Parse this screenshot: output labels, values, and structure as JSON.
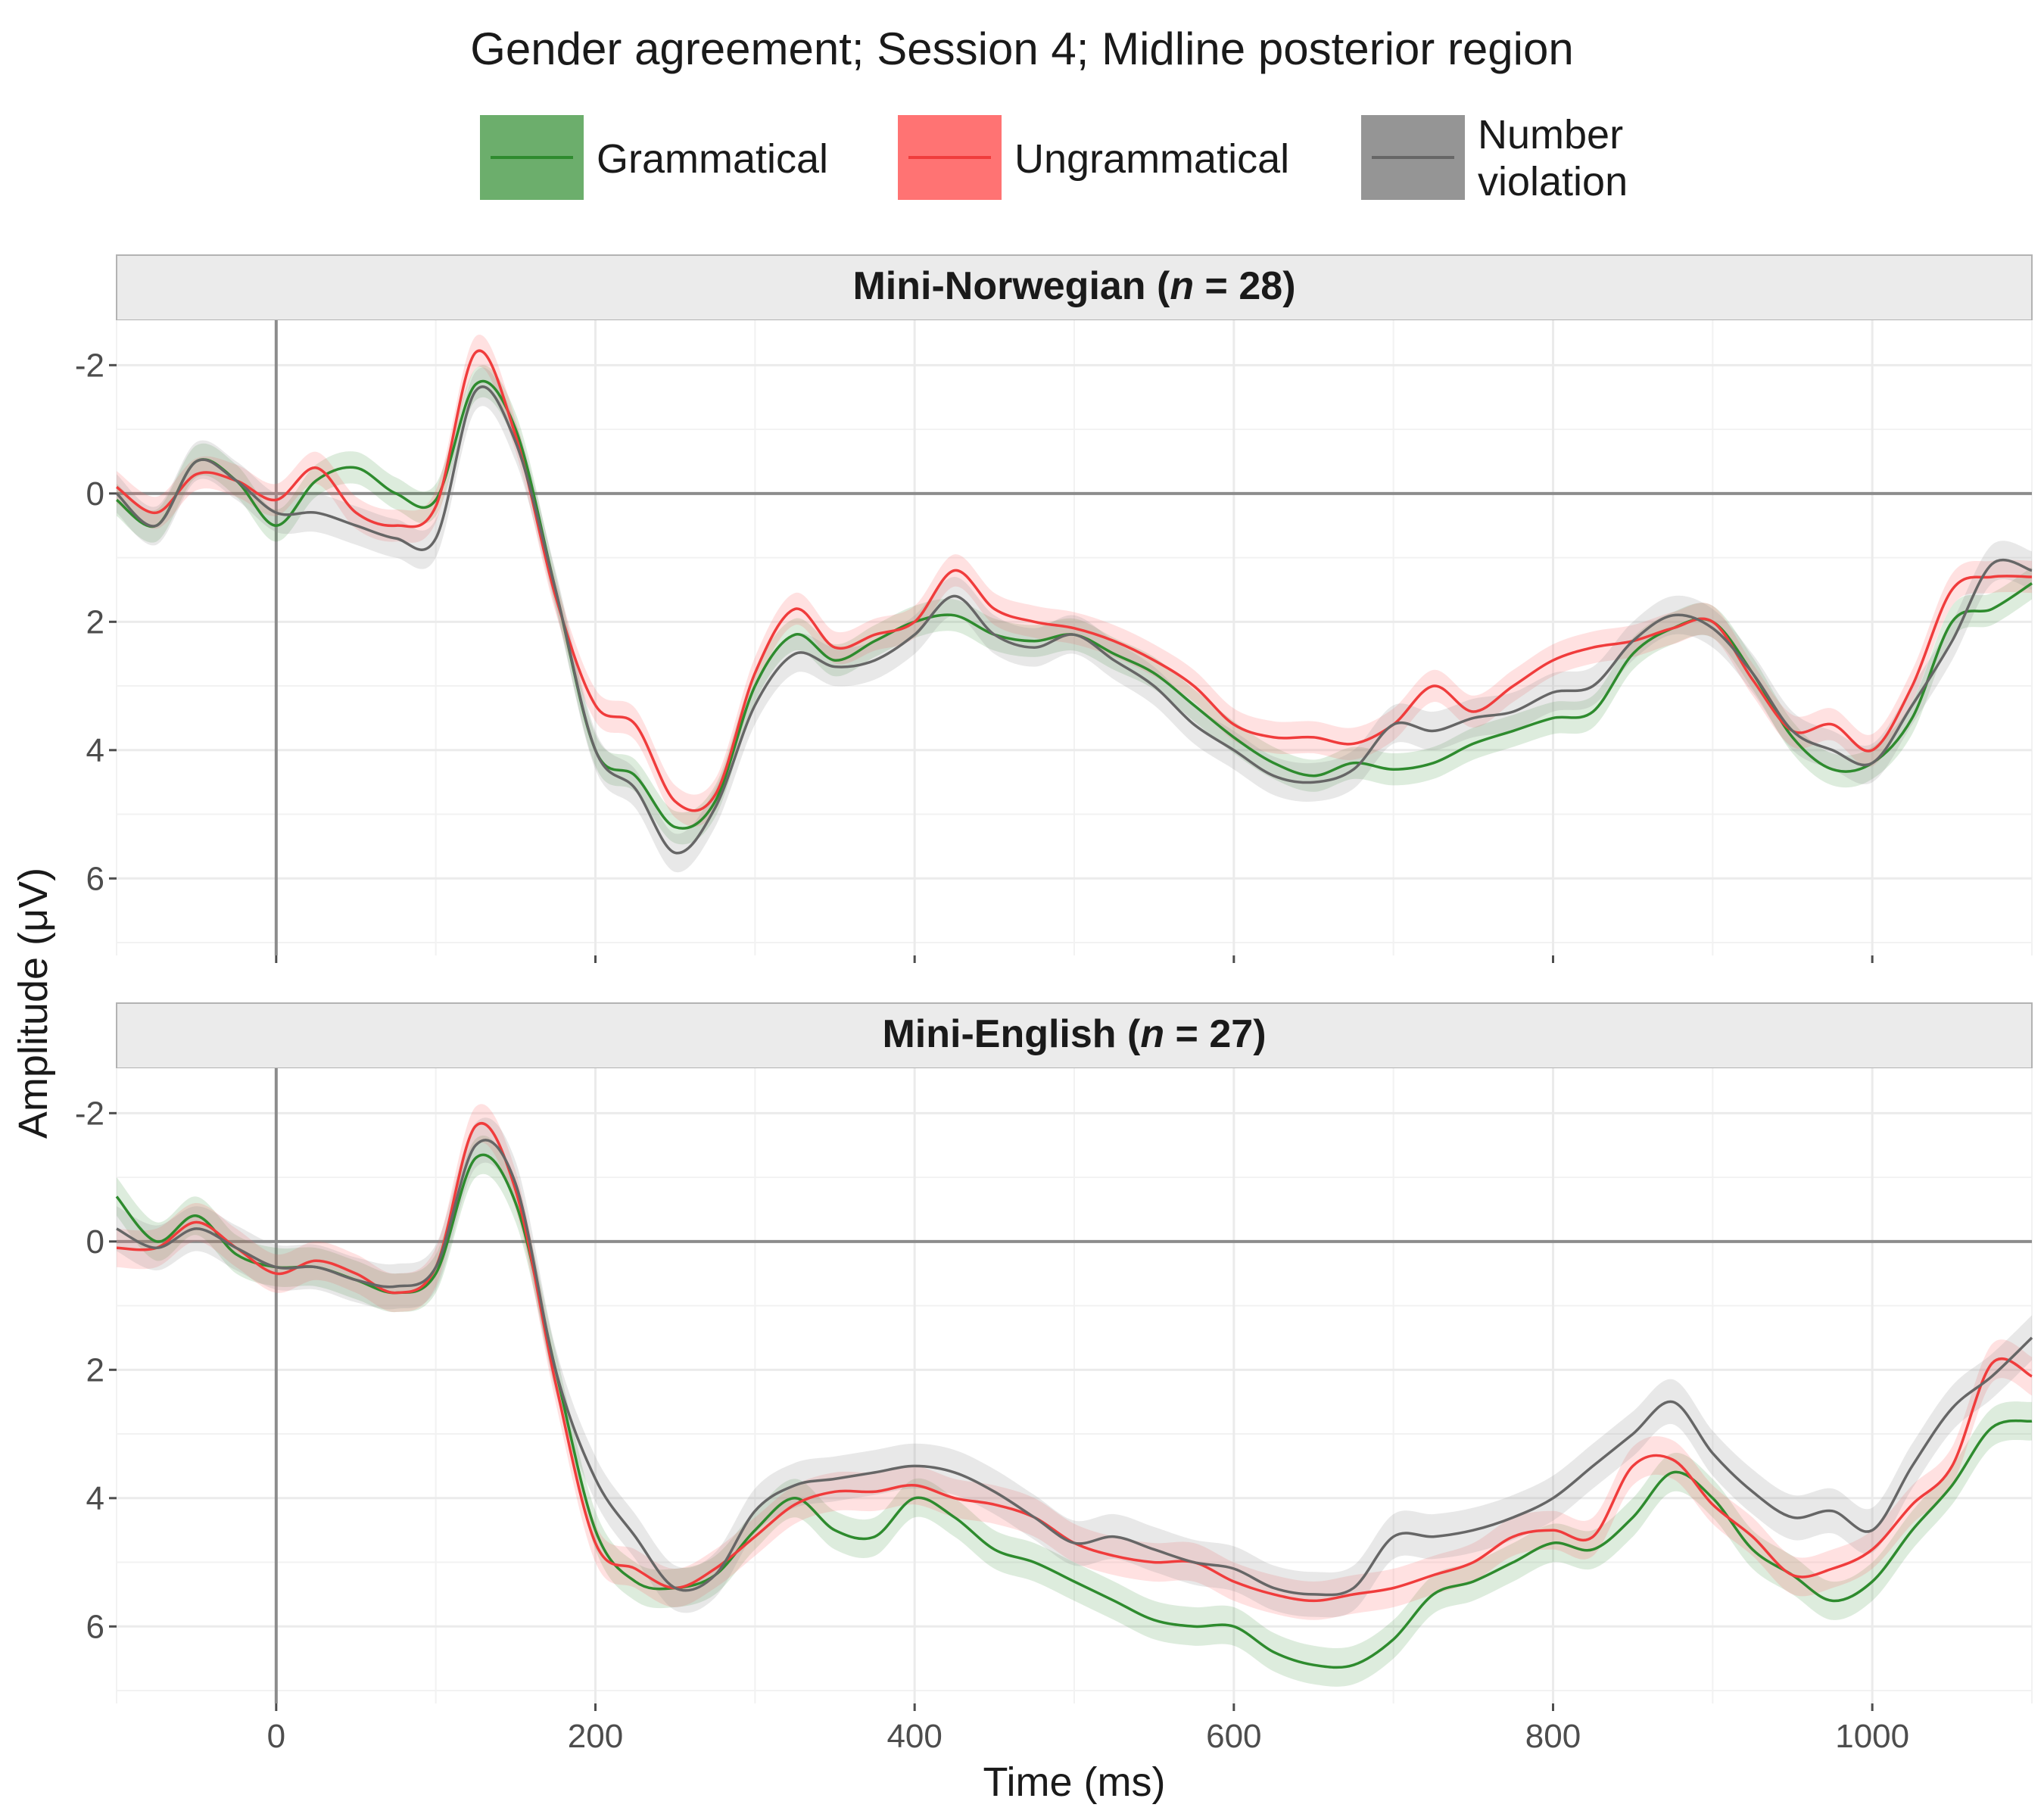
{
  "chart_data": {
    "type": "line",
    "title": "Gender agreement; Session 4; Midline posterior region",
    "xlabel": "Time (ms)",
    "ylabel": "Amplitude (μV)",
    "xlim": [
      -100,
      1100
    ],
    "ylim": [
      -2.7,
      7.2
    ],
    "y_reversed": true,
    "xticks": [
      0,
      200,
      400,
      600,
      800,
      1000
    ],
    "xtick_labels": [
      "0",
      "200",
      "400",
      "600",
      "800",
      "1000"
    ],
    "yticks": [
      -2,
      0,
      2,
      4,
      6
    ],
    "ytick_labels": [
      "-2",
      "0",
      "2",
      "4",
      "6"
    ],
    "grid": true,
    "legend_position": "top",
    "legend": [
      {
        "key": "grammatical",
        "label": "Grammatical",
        "color": "#2e8b2e"
      },
      {
        "key": "ungrammatical",
        "label": "Ungrammatical",
        "color": "#f03c3c"
      },
      {
        "key": "number",
        "label": "Number violation",
        "label_lines": [
          "Number",
          "violation"
        ],
        "color": "#666666"
      }
    ],
    "x": [
      -100,
      -75,
      -50,
      -25,
      0,
      25,
      50,
      75,
      100,
      125,
      150,
      175,
      200,
      225,
      250,
      275,
      300,
      325,
      350,
      375,
      400,
      425,
      450,
      475,
      500,
      525,
      550,
      575,
      600,
      625,
      650,
      675,
      700,
      725,
      750,
      775,
      800,
      825,
      850,
      875,
      900,
      925,
      950,
      975,
      1000,
      1025,
      1050,
      1075,
      1100
    ],
    "panels": [
      {
        "strip_prefix": "Mini-Norwegian (",
        "strip_n": "n",
        "strip_suffix": " = 28)",
        "series": [
          {
            "name": "Grammatical",
            "key": "grammatical",
            "ci": 0.25,
            "values": [
              0.1,
              0.5,
              -0.5,
              -0.2,
              0.5,
              -0.2,
              -0.4,
              0.0,
              0.1,
              -1.7,
              -1.0,
              1.5,
              4.0,
              4.4,
              5.2,
              4.8,
              3.0,
              2.2,
              2.6,
              2.3,
              2.0,
              1.9,
              2.2,
              2.3,
              2.2,
              2.5,
              2.8,
              3.3,
              3.8,
              4.2,
              4.4,
              4.2,
              4.3,
              4.2,
              3.9,
              3.7,
              3.5,
              3.4,
              2.5,
              2.1,
              2.0,
              2.8,
              3.8,
              4.3,
              4.2,
              3.5,
              2.0,
              1.8,
              1.4
            ]
          },
          {
            "name": "Ungrammatical",
            "key": "ungrammatical",
            "ci": 0.25,
            "values": [
              -0.1,
              0.3,
              -0.3,
              -0.2,
              0.1,
              -0.4,
              0.3,
              0.5,
              0.2,
              -2.2,
              -0.9,
              1.6,
              3.3,
              3.6,
              4.8,
              4.7,
              2.8,
              1.8,
              2.4,
              2.2,
              2.0,
              1.2,
              1.8,
              2.0,
              2.1,
              2.3,
              2.6,
              3.0,
              3.6,
              3.8,
              3.8,
              3.9,
              3.6,
              3.0,
              3.4,
              3.0,
              2.6,
              2.4,
              2.3,
              2.1,
              2.0,
              2.9,
              3.7,
              3.6,
              4.0,
              3.0,
              1.5,
              1.3,
              1.3
            ]
          },
          {
            "name": "Number violation",
            "key": "number",
            "ci": 0.3,
            "values": [
              0.0,
              0.5,
              -0.5,
              -0.2,
              0.3,
              0.3,
              0.5,
              0.7,
              0.7,
              -1.6,
              -0.8,
              1.5,
              4.0,
              4.6,
              5.6,
              4.9,
              3.3,
              2.5,
              2.7,
              2.6,
              2.2,
              1.6,
              2.2,
              2.4,
              2.2,
              2.6,
              3.0,
              3.6,
              4.0,
              4.4,
              4.5,
              4.3,
              3.6,
              3.7,
              3.5,
              3.4,
              3.1,
              3.0,
              2.3,
              1.9,
              2.1,
              2.8,
              3.7,
              4.0,
              4.2,
              3.3,
              2.3,
              1.1,
              1.2
            ]
          }
        ]
      },
      {
        "strip_prefix": "Mini-English (",
        "strip_n": "n",
        "strip_suffix": " = 27)",
        "series": [
          {
            "name": "Grammatical",
            "key": "grammatical",
            "ci": 0.3,
            "values": [
              -0.7,
              0.0,
              -0.4,
              0.2,
              0.4,
              0.4,
              0.6,
              0.8,
              0.5,
              -1.3,
              -0.6,
              2.0,
              4.5,
              5.3,
              5.4,
              5.2,
              4.5,
              4.0,
              4.5,
              4.6,
              4.0,
              4.3,
              4.8,
              5.0,
              5.3,
              5.6,
              5.9,
              6.0,
              6.0,
              6.4,
              6.6,
              6.6,
              6.2,
              5.5,
              5.3,
              5.0,
              4.7,
              4.8,
              4.3,
              3.6,
              4.0,
              4.8,
              5.2,
              5.6,
              5.3,
              4.5,
              3.8,
              2.9,
              2.8
            ]
          },
          {
            "name": "Ungrammatical",
            "key": "ungrammatical",
            "ci": 0.3,
            "values": [
              0.1,
              0.1,
              -0.3,
              0.1,
              0.5,
              0.3,
              0.5,
              0.8,
              0.4,
              -1.8,
              -0.8,
              2.2,
              4.7,
              5.1,
              5.4,
              5.1,
              4.6,
              4.1,
              3.9,
              3.9,
              3.8,
              4.0,
              4.1,
              4.3,
              4.7,
              4.9,
              5.0,
              5.0,
              5.3,
              5.5,
              5.6,
              5.5,
              5.4,
              5.2,
              5.0,
              4.6,
              4.5,
              4.6,
              3.5,
              3.4,
              4.1,
              4.6,
              5.2,
              5.1,
              4.8,
              4.1,
              3.5,
              1.9,
              2.1
            ]
          },
          {
            "name": "Number violation",
            "key": "number",
            "ci": 0.35,
            "values": [
              -0.2,
              0.1,
              -0.2,
              0.1,
              0.4,
              0.4,
              0.6,
              0.7,
              0.4,
              -1.5,
              -0.9,
              2.0,
              3.7,
              4.6,
              5.4,
              5.2,
              4.2,
              3.8,
              3.7,
              3.6,
              3.5,
              3.6,
              3.9,
              4.3,
              4.7,
              4.6,
              4.8,
              5.0,
              5.1,
              5.4,
              5.5,
              5.4,
              4.6,
              4.6,
              4.5,
              4.3,
              4.0,
              3.5,
              3.0,
              2.5,
              3.3,
              3.9,
              4.3,
              4.2,
              4.5,
              3.5,
              2.6,
              2.1,
              1.5
            ]
          }
        ]
      }
    ]
  }
}
